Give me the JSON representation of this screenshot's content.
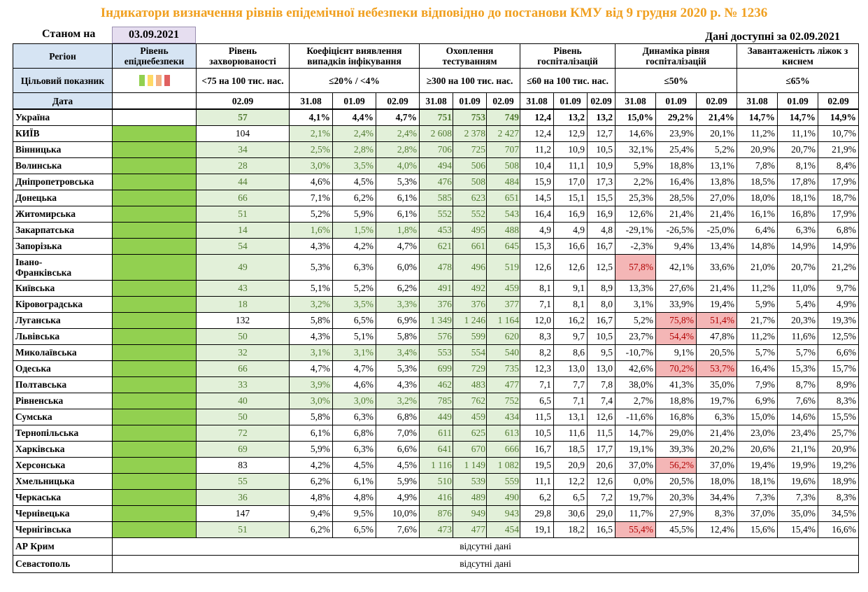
{
  "title": "Індикатори визначення рівнів епідемічної небезпеки відповідно до постанови КМУ від 9 грудня 2020 р. № 1236",
  "as_of_label": "Станом на",
  "as_of_date": "03.09.2021",
  "data_available": "Дані доступні за  02.09.2021",
  "headers": {
    "region": "Регіон",
    "level": "Рівень епіднебезпеки",
    "incidence": "Рівень захворюваності",
    "detection": "Коефіцієнт виявлення випадків інфікування",
    "testing": "Охоплення тестуванням",
    "hospitalization": "Рівень госпіталізацій",
    "hosp_dynamics": "Динаміка рівня госпіталізацій",
    "oxygen_beds": "Завантаженість ліжок з киснем"
  },
  "target_row": {
    "label": "Цільовий показник",
    "incidence": "<75 на 100 тис. нас.",
    "detection": "≤20% / <4%",
    "testing": "≥300 на 100 тис. нас.",
    "hospitalization": "≤60 на 100 тис. нас.",
    "hosp_dynamics": "≤50%",
    "oxygen_beds": "≤65%"
  },
  "swatch_colors": [
    "#92d050",
    "#ffd966",
    "#f4b183",
    "#e06060"
  ],
  "date_row": {
    "label": "Дата",
    "incidence": "02.09",
    "d1": "31.08",
    "d2": "01.09",
    "d3": "02.09"
  },
  "rows": [
    {
      "region": "Україна",
      "inc": "57",
      "det": [
        "4,1%",
        "4,4%",
        "4,7%"
      ],
      "tst": [
        "751",
        "753",
        "749"
      ],
      "hos": [
        "12,4",
        "13,2",
        "13,2"
      ],
      "dyn": [
        "15,0%",
        "29,2%",
        "21,4%"
      ],
      "oxy": [
        "14,7%",
        "14,7%",
        "14,9%"
      ],
      "bold": true,
      "level": "none",
      "incG": true,
      "detG": [
        false,
        false,
        false
      ],
      "tstG": true,
      "dynR": [
        false,
        false,
        false
      ]
    },
    {
      "region": "КИЇВ",
      "inc": "104",
      "det": [
        "2,1%",
        "2,4%",
        "2,4%"
      ],
      "tst": [
        "2 608",
        "2 378",
        "2 427"
      ],
      "hos": [
        "12,4",
        "12,9",
        "12,7"
      ],
      "dyn": [
        "14,6%",
        "23,9%",
        "20,1%"
      ],
      "oxy": [
        "11,2%",
        "11,1%",
        "10,7%"
      ],
      "level": "green",
      "incG": false,
      "detG": [
        true,
        true,
        true
      ],
      "tstG": true,
      "dynR": [
        false,
        false,
        false
      ]
    },
    {
      "region": "Вінницька",
      "inc": "34",
      "det": [
        "2,5%",
        "2,8%",
        "2,8%"
      ],
      "tst": [
        "706",
        "725",
        "707"
      ],
      "hos": [
        "11,2",
        "10,9",
        "10,5"
      ],
      "dyn": [
        "32,1%",
        "25,4%",
        "5,2%"
      ],
      "oxy": [
        "20,9%",
        "20,7%",
        "21,9%"
      ],
      "level": "green",
      "incG": true,
      "detG": [
        true,
        true,
        true
      ],
      "tstG": true,
      "dynR": [
        false,
        false,
        false
      ]
    },
    {
      "region": "Волинська",
      "inc": "28",
      "det": [
        "3,0%",
        "3,5%",
        "4,0%"
      ],
      "tst": [
        "494",
        "506",
        "508"
      ],
      "hos": [
        "10,4",
        "11,1",
        "10,9"
      ],
      "dyn": [
        "5,9%",
        "18,8%",
        "13,1%"
      ],
      "oxy": [
        "7,8%",
        "8,1%",
        "8,4%"
      ],
      "level": "green",
      "incG": true,
      "detG": [
        true,
        true,
        true
      ],
      "tstG": true,
      "dynR": [
        false,
        false,
        false
      ]
    },
    {
      "region": "Дніпропетровська",
      "inc": "44",
      "det": [
        "4,6%",
        "4,5%",
        "5,3%"
      ],
      "tst": [
        "476",
        "508",
        "484"
      ],
      "hos": [
        "15,9",
        "17,0",
        "17,3"
      ],
      "dyn": [
        "2,2%",
        "16,4%",
        "13,8%"
      ],
      "oxy": [
        "18,5%",
        "17,8%",
        "17,9%"
      ],
      "level": "green",
      "incG": true,
      "detG": [
        false,
        false,
        false
      ],
      "tstG": true,
      "dynR": [
        false,
        false,
        false
      ]
    },
    {
      "region": "Донецька",
      "inc": "66",
      "det": [
        "7,1%",
        "6,2%",
        "6,1%"
      ],
      "tst": [
        "585",
        "623",
        "651"
      ],
      "hos": [
        "14,5",
        "15,1",
        "15,5"
      ],
      "dyn": [
        "25,3%",
        "28,5%",
        "27,0%"
      ],
      "oxy": [
        "18,0%",
        "18,1%",
        "18,7%"
      ],
      "level": "green",
      "incG": true,
      "detG": [
        false,
        false,
        false
      ],
      "tstG": true,
      "dynR": [
        false,
        false,
        false
      ]
    },
    {
      "region": "Житомирська",
      "inc": "51",
      "det": [
        "5,2%",
        "5,9%",
        "6,1%"
      ],
      "tst": [
        "552",
        "552",
        "543"
      ],
      "hos": [
        "16,4",
        "16,9",
        "16,9"
      ],
      "dyn": [
        "12,6%",
        "21,4%",
        "21,4%"
      ],
      "oxy": [
        "16,1%",
        "16,8%",
        "17,9%"
      ],
      "level": "green",
      "incG": true,
      "detG": [
        false,
        false,
        false
      ],
      "tstG": true,
      "dynR": [
        false,
        false,
        false
      ]
    },
    {
      "region": "Закарпатська",
      "inc": "14",
      "det": [
        "1,6%",
        "1,5%",
        "1,8%"
      ],
      "tst": [
        "453",
        "495",
        "488"
      ],
      "hos": [
        "4,9",
        "4,9",
        "4,8"
      ],
      "dyn": [
        "-29,1%",
        "-26,5%",
        "-25,0%"
      ],
      "oxy": [
        "6,4%",
        "6,3%",
        "6,8%"
      ],
      "level": "green",
      "incG": true,
      "detG": [
        true,
        true,
        true
      ],
      "tstG": true,
      "dynR": [
        false,
        false,
        false
      ]
    },
    {
      "region": "Запорізька",
      "inc": "54",
      "det": [
        "4,3%",
        "4,2%",
        "4,7%"
      ],
      "tst": [
        "621",
        "661",
        "645"
      ],
      "hos": [
        "15,3",
        "16,6",
        "16,7"
      ],
      "dyn": [
        "-2,3%",
        "9,4%",
        "13,4%"
      ],
      "oxy": [
        "14,8%",
        "14,9%",
        "14,9%"
      ],
      "level": "green",
      "incG": true,
      "detG": [
        false,
        false,
        false
      ],
      "tstG": true,
      "dynR": [
        false,
        false,
        false
      ]
    },
    {
      "region": "Івано-Франківська",
      "inc": "49",
      "det": [
        "5,3%",
        "6,3%",
        "6,0%"
      ],
      "tst": [
        "478",
        "496",
        "519"
      ],
      "hos": [
        "12,6",
        "12,6",
        "12,5"
      ],
      "dyn": [
        "57,8%",
        "42,1%",
        "33,6%"
      ],
      "oxy": [
        "21,0%",
        "20,7%",
        "21,2%"
      ],
      "level": "green",
      "incG": true,
      "detG": [
        false,
        false,
        false
      ],
      "tstG": true,
      "dynR": [
        true,
        false,
        false
      ],
      "tall": true,
      "region1": "Івано-",
      "region2": "Франківська"
    },
    {
      "region": "Київська",
      "inc": "43",
      "det": [
        "5,1%",
        "5,2%",
        "6,2%"
      ],
      "tst": [
        "491",
        "492",
        "459"
      ],
      "hos": [
        "8,1",
        "9,1",
        "8,9"
      ],
      "dyn": [
        "13,3%",
        "27,6%",
        "21,4%"
      ],
      "oxy": [
        "11,2%",
        "11,0%",
        "9,7%"
      ],
      "level": "green",
      "incG": true,
      "detG": [
        false,
        false,
        false
      ],
      "tstG": true,
      "dynR": [
        false,
        false,
        false
      ]
    },
    {
      "region": "Кіровоградська",
      "inc": "18",
      "det": [
        "3,2%",
        "3,5%",
        "3,3%"
      ],
      "tst": [
        "376",
        "376",
        "377"
      ],
      "hos": [
        "7,1",
        "8,1",
        "8,0"
      ],
      "dyn": [
        "3,1%",
        "33,9%",
        "19,4%"
      ],
      "oxy": [
        "5,9%",
        "5,4%",
        "4,9%"
      ],
      "level": "green",
      "incG": true,
      "detG": [
        true,
        true,
        true
      ],
      "tstG": true,
      "dynR": [
        false,
        false,
        false
      ]
    },
    {
      "region": "Луганська",
      "inc": "132",
      "det": [
        "5,8%",
        "6,5%",
        "6,9%"
      ],
      "tst": [
        "1 349",
        "1 246",
        "1 164"
      ],
      "hos": [
        "12,0",
        "16,2",
        "16,7"
      ],
      "dyn": [
        "5,2%",
        "75,8%",
        "51,4%"
      ],
      "oxy": [
        "21,7%",
        "20,3%",
        "19,3%"
      ],
      "level": "green",
      "incG": false,
      "detG": [
        false,
        false,
        false
      ],
      "tstG": true,
      "dynR": [
        false,
        true,
        true
      ]
    },
    {
      "region": "Львівська",
      "inc": "50",
      "det": [
        "4,3%",
        "5,1%",
        "5,8%"
      ],
      "tst": [
        "576",
        "599",
        "620"
      ],
      "hos": [
        "8,3",
        "9,7",
        "10,5"
      ],
      "dyn": [
        "23,7%",
        "54,4%",
        "47,8%"
      ],
      "oxy": [
        "11,2%",
        "11,6%",
        "12,5%"
      ],
      "level": "green",
      "incG": true,
      "detG": [
        false,
        false,
        false
      ],
      "tstG": true,
      "dynR": [
        false,
        true,
        false
      ]
    },
    {
      "region": "Миколаївська",
      "inc": "32",
      "det": [
        "3,1%",
        "3,1%",
        "3,4%"
      ],
      "tst": [
        "553",
        "554",
        "540"
      ],
      "hos": [
        "8,2",
        "8,6",
        "9,5"
      ],
      "dyn": [
        "-10,7%",
        "9,1%",
        "20,5%"
      ],
      "oxy": [
        "5,7%",
        "5,7%",
        "6,6%"
      ],
      "level": "green",
      "incG": true,
      "detG": [
        true,
        true,
        true
      ],
      "tstG": true,
      "dynR": [
        false,
        false,
        false
      ]
    },
    {
      "region": "Одеська",
      "inc": "66",
      "det": [
        "4,7%",
        "4,7%",
        "5,3%"
      ],
      "tst": [
        "699",
        "729",
        "735"
      ],
      "hos": [
        "12,3",
        "13,0",
        "13,0"
      ],
      "dyn": [
        "42,6%",
        "70,2%",
        "53,7%"
      ],
      "oxy": [
        "16,4%",
        "15,3%",
        "15,7%"
      ],
      "level": "green",
      "incG": true,
      "detG": [
        false,
        false,
        false
      ],
      "tstG": true,
      "dynR": [
        false,
        true,
        true
      ]
    },
    {
      "region": "Полтавська",
      "inc": "33",
      "det": [
        "3,9%",
        "4,6%",
        "4,3%"
      ],
      "tst": [
        "462",
        "483",
        "477"
      ],
      "hos": [
        "7,1",
        "7,7",
        "7,8"
      ],
      "dyn": [
        "38,0%",
        "41,3%",
        "35,0%"
      ],
      "oxy": [
        "7,9%",
        "8,7%",
        "8,9%"
      ],
      "level": "green",
      "incG": true,
      "detG": [
        true,
        false,
        false
      ],
      "tstG": true,
      "dynR": [
        false,
        false,
        false
      ]
    },
    {
      "region": "Рівненська",
      "inc": "40",
      "det": [
        "3,0%",
        "3,0%",
        "3,2%"
      ],
      "tst": [
        "785",
        "762",
        "752"
      ],
      "hos": [
        "6,5",
        "7,1",
        "7,4"
      ],
      "dyn": [
        "2,7%",
        "18,8%",
        "19,7%"
      ],
      "oxy": [
        "6,9%",
        "7,6%",
        "8,3%"
      ],
      "level": "green",
      "incG": true,
      "detG": [
        true,
        true,
        true
      ],
      "tstG": true,
      "dynR": [
        false,
        false,
        false
      ]
    },
    {
      "region": "Сумська",
      "inc": "50",
      "det": [
        "5,8%",
        "6,3%",
        "6,8%"
      ],
      "tst": [
        "449",
        "459",
        "434"
      ],
      "hos": [
        "11,5",
        "13,1",
        "12,6"
      ],
      "dyn": [
        "-11,6%",
        "16,8%",
        "6,3%"
      ],
      "oxy": [
        "15,0%",
        "14,6%",
        "15,5%"
      ],
      "level": "green",
      "incG": true,
      "detG": [
        false,
        false,
        false
      ],
      "tstG": true,
      "dynR": [
        false,
        false,
        false
      ]
    },
    {
      "region": "Тернопільська",
      "inc": "72",
      "det": [
        "6,1%",
        "6,8%",
        "7,0%"
      ],
      "tst": [
        "611",
        "625",
        "613"
      ],
      "hos": [
        "10,5",
        "11,6",
        "11,5"
      ],
      "dyn": [
        "14,7%",
        "29,0%",
        "21,4%"
      ],
      "oxy": [
        "23,0%",
        "23,4%",
        "25,7%"
      ],
      "level": "green",
      "incG": true,
      "detG": [
        false,
        false,
        false
      ],
      "tstG": true,
      "dynR": [
        false,
        false,
        false
      ]
    },
    {
      "region": "Харківська",
      "inc": "69",
      "det": [
        "5,9%",
        "6,3%",
        "6,6%"
      ],
      "tst": [
        "641",
        "670",
        "666"
      ],
      "hos": [
        "16,7",
        "18,5",
        "17,7"
      ],
      "dyn": [
        "19,1%",
        "39,3%",
        "20,2%"
      ],
      "oxy": [
        "20,6%",
        "21,1%",
        "20,9%"
      ],
      "level": "green",
      "incG": true,
      "detG": [
        false,
        false,
        false
      ],
      "tstG": true,
      "dynR": [
        false,
        false,
        false
      ]
    },
    {
      "region": "Херсонська",
      "inc": "83",
      "det": [
        "4,2%",
        "4,5%",
        "4,5%"
      ],
      "tst": [
        "1 116",
        "1 149",
        "1 082"
      ],
      "hos": [
        "19,5",
        "20,9",
        "20,6"
      ],
      "dyn": [
        "37,0%",
        "56,2%",
        "37,0%"
      ],
      "oxy": [
        "19,4%",
        "19,9%",
        "19,2%"
      ],
      "level": "green",
      "incG": false,
      "detG": [
        false,
        false,
        false
      ],
      "tstG": true,
      "dynR": [
        false,
        true,
        false
      ]
    },
    {
      "region": "Хмельницька",
      "inc": "55",
      "det": [
        "6,2%",
        "6,1%",
        "5,9%"
      ],
      "tst": [
        "510",
        "539",
        "559"
      ],
      "hos": [
        "11,1",
        "12,2",
        "12,6"
      ],
      "dyn": [
        "0,0%",
        "20,5%",
        "18,0%"
      ],
      "oxy": [
        "18,1%",
        "19,6%",
        "18,9%"
      ],
      "level": "green",
      "incG": true,
      "detG": [
        false,
        false,
        false
      ],
      "tstG": true,
      "dynR": [
        false,
        false,
        false
      ]
    },
    {
      "region": "Черкаська",
      "inc": "36",
      "det": [
        "4,8%",
        "4,8%",
        "4,9%"
      ],
      "tst": [
        "416",
        "489",
        "490"
      ],
      "hos": [
        "6,2",
        "6,5",
        "7,2"
      ],
      "dyn": [
        "19,7%",
        "20,3%",
        "34,4%"
      ],
      "oxy": [
        "7,3%",
        "7,3%",
        "8,3%"
      ],
      "level": "green",
      "incG": true,
      "detG": [
        false,
        false,
        false
      ],
      "tstG": true,
      "dynR": [
        false,
        false,
        false
      ]
    },
    {
      "region": "Чернівецька",
      "inc": "147",
      "det": [
        "9,4%",
        "9,5%",
        "10,0%"
      ],
      "tst": [
        "876",
        "949",
        "943"
      ],
      "hos": [
        "29,8",
        "30,6",
        "29,0"
      ],
      "dyn": [
        "11,7%",
        "27,9%",
        "8,3%"
      ],
      "oxy": [
        "37,0%",
        "35,0%",
        "34,5%"
      ],
      "level": "green",
      "incG": false,
      "detG": [
        false,
        false,
        false
      ],
      "tstG": true,
      "dynR": [
        false,
        false,
        false
      ]
    },
    {
      "region": "Чернігівська",
      "inc": "51",
      "det": [
        "6,2%",
        "6,5%",
        "7,6%"
      ],
      "tst": [
        "473",
        "477",
        "454"
      ],
      "hos": [
        "19,1",
        "18,2",
        "16,5"
      ],
      "dyn": [
        "55,4%",
        "45,5%",
        "12,4%"
      ],
      "oxy": [
        "15,6%",
        "15,4%",
        "16,6%"
      ],
      "level": "green",
      "incG": true,
      "detG": [
        false,
        false,
        false
      ],
      "tstG": true,
      "dynR": [
        true,
        false,
        false
      ]
    }
  ],
  "missing_rows": [
    {
      "region": "АР Крим",
      "note": "відсутні дані"
    },
    {
      "region": "Севастополь",
      "note": "відсутні дані"
    }
  ]
}
